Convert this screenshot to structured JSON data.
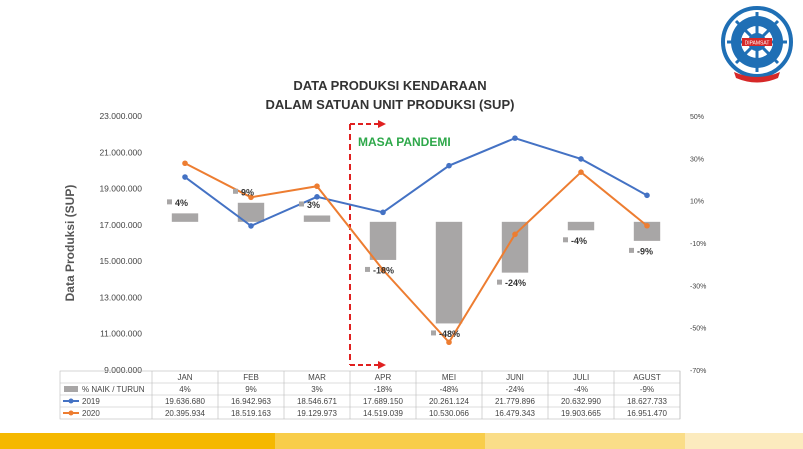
{
  "chart_data": {
    "type": "bar+line",
    "title_line1": "DATA PRODUKSI KENDARAAN",
    "title_line2": "DALAM SATUAN UNIT PRODUKSI (SUP)",
    "ylabel": "Data Produksi (SUP)",
    "categories": [
      "JAN",
      "FEB",
      "MAR",
      "APR",
      "MEI",
      "JUNI",
      "JULI",
      "AGUST"
    ],
    "y_left_ticks": [
      "23.000.000",
      "21.000.000",
      "19.000.000",
      "17.000.000",
      "15.000.000",
      "13.000.000",
      "11.000.000",
      "9.000.000"
    ],
    "ylim_left": [
      9000000,
      23000000
    ],
    "y_right_ticks": [
      "50%",
      "30%",
      "10%",
      "-10%",
      "-30%",
      "-50%",
      "-70%"
    ],
    "ylim_right": [
      -70,
      50
    ],
    "annotation": "MASA PANDEMI",
    "series": [
      {
        "name": "% NAIK / TURUN",
        "kind": "bar",
        "axis": "right",
        "color": "#a8a6a6",
        "values": [
          4,
          9,
          3,
          -18,
          -48,
          -24,
          -4,
          -9
        ],
        "labels": [
          "4%",
          "9%",
          "3%",
          "-18%",
          "-48%",
          "-24%",
          "-4%",
          "-9%"
        ],
        "table": [
          "4%",
          "9%",
          "3%",
          "-18%",
          "-48%",
          "-24%",
          "-4%",
          "-9%"
        ]
      },
      {
        "name": "2019",
        "kind": "line",
        "axis": "left",
        "color": "#4472c4",
        "values": [
          19636680,
          16942963,
          18546671,
          17689150,
          20261124,
          21779896,
          20632990,
          18627733
        ],
        "table": [
          "19.636.680",
          "16.942.963",
          "18.546.671",
          "17.689.150",
          "20.261.124",
          "21.779.896",
          "20.632.990",
          "18.627.733"
        ]
      },
      {
        "name": "2020",
        "kind": "line",
        "axis": "left",
        "color": "#ed7d31",
        "values": [
          20395934,
          18519163,
          19129973,
          14519039,
          10530066,
          16479343,
          19903665,
          16951470
        ],
        "table": [
          "20.395.934",
          "18.519.163",
          "19.129.973",
          "14.519.039",
          "10.530.066",
          "16.479.343",
          "19.903.665",
          "16.951.470"
        ]
      }
    ]
  },
  "logo": {
    "text": "DIPAMSAT"
  },
  "colors": {
    "footer": [
      "#f5b800",
      "#f8cd4a",
      "#fadd88",
      "#fcebbe"
    ],
    "annotation": "#2ea84a",
    "pandemic_line": "#e02020"
  }
}
